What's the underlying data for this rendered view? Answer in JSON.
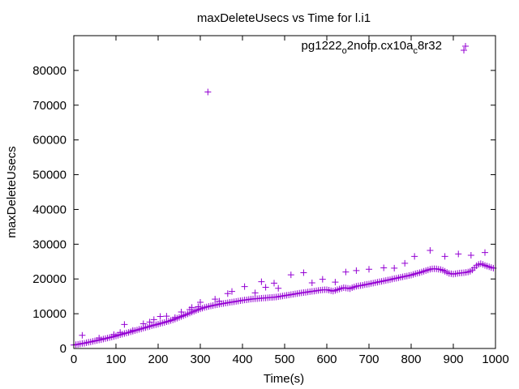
{
  "chart_data": {
    "type": "scatter",
    "title": "maxDeleteUsecs vs Time for l.i1",
    "xlabel": "Time(s)",
    "ylabel": "maxDeleteUsecs",
    "xlim": [
      0,
      1000
    ],
    "ylim": [
      0,
      90000
    ],
    "xticks": [
      0,
      100,
      200,
      300,
      400,
      500,
      600,
      700,
      800,
      900,
      1000
    ],
    "yticks": [
      0,
      10000,
      20000,
      30000,
      40000,
      50000,
      60000,
      70000,
      80000
    ],
    "grid": false,
    "legend_position": "top-right",
    "marker": "+",
    "series": [
      {
        "name": "pg1222_o2nofp.cx10a_c8r32",
        "legend_text": {
          "base": "pg1222",
          "sub1": "o",
          "mid": "2nofp.cx10a",
          "sub2": "c",
          "end": "8r32"
        },
        "color": "#9400d3",
        "points": [
          [
            0,
            1000
          ],
          [
            5,
            1100
          ],
          [
            10,
            1200
          ],
          [
            15,
            1300
          ],
          [
            20,
            1450
          ],
          [
            25,
            1500
          ],
          [
            30,
            1650
          ],
          [
            35,
            1800
          ],
          [
            40,
            1900
          ],
          [
            45,
            2050
          ],
          [
            50,
            2200
          ],
          [
            55,
            2300
          ],
          [
            60,
            2450
          ],
          [
            65,
            2550
          ],
          [
            70,
            2700
          ],
          [
            75,
            2850
          ],
          [
            80,
            3000
          ],
          [
            85,
            3150
          ],
          [
            90,
            3300
          ],
          [
            95,
            3450
          ],
          [
            100,
            3600
          ],
          [
            105,
            3800
          ],
          [
            110,
            3950
          ],
          [
            115,
            4100
          ],
          [
            120,
            4300
          ],
          [
            125,
            4450
          ],
          [
            130,
            4600
          ],
          [
            135,
            4800
          ],
          [
            140,
            4950
          ],
          [
            145,
            5150
          ],
          [
            150,
            5300
          ],
          [
            155,
            5500
          ],
          [
            160,
            5650
          ],
          [
            165,
            5850
          ],
          [
            170,
            6000
          ],
          [
            175,
            6200
          ],
          [
            180,
            6350
          ],
          [
            185,
            6550
          ],
          [
            190,
            6700
          ],
          [
            195,
            6850
          ],
          [
            200,
            7000
          ],
          [
            205,
            7200
          ],
          [
            210,
            7350
          ],
          [
            215,
            7500
          ],
          [
            220,
            7700
          ],
          [
            225,
            7850
          ],
          [
            230,
            8050
          ],
          [
            235,
            8250
          ],
          [
            240,
            8450
          ],
          [
            245,
            8700
          ],
          [
            250,
            8950
          ],
          [
            255,
            9200
          ],
          [
            260,
            9450
          ],
          [
            265,
            9700
          ],
          [
            270,
            9950
          ],
          [
            275,
            10200
          ],
          [
            280,
            10450
          ],
          [
            285,
            10700
          ],
          [
            290,
            10950
          ],
          [
            295,
            11150
          ],
          [
            300,
            11400
          ],
          [
            305,
            11600
          ],
          [
            310,
            11800
          ],
          [
            315,
            11950
          ],
          [
            320,
            12100
          ],
          [
            325,
            12250
          ],
          [
            330,
            12350
          ],
          [
            335,
            12500
          ],
          [
            340,
            12600
          ],
          [
            345,
            12750
          ],
          [
            350,
            12850
          ],
          [
            355,
            12950
          ],
          [
            360,
            13050
          ],
          [
            365,
            13150
          ],
          [
            370,
            13250
          ],
          [
            375,
            13350
          ],
          [
            380,
            13450
          ],
          [
            385,
            13550
          ],
          [
            390,
            13650
          ],
          [
            395,
            13750
          ],
          [
            400,
            13850
          ],
          [
            405,
            13950
          ],
          [
            410,
            14000
          ],
          [
            415,
            14100
          ],
          [
            420,
            14200
          ],
          [
            425,
            14250
          ],
          [
            430,
            14300
          ],
          [
            435,
            14350
          ],
          [
            440,
            14400
          ],
          [
            445,
            14450
          ],
          [
            450,
            14500
          ],
          [
            455,
            14550
          ],
          [
            460,
            14600
          ],
          [
            465,
            14650
          ],
          [
            470,
            14700
          ],
          [
            475,
            14750
          ],
          [
            480,
            14800
          ],
          [
            485,
            14900
          ],
          [
            490,
            15000
          ],
          [
            495,
            15100
          ],
          [
            500,
            15200
          ],
          [
            505,
            15300
          ],
          [
            510,
            15400
          ],
          [
            515,
            15500
          ],
          [
            520,
            15600
          ],
          [
            525,
            15700
          ],
          [
            530,
            15800
          ],
          [
            535,
            15900
          ],
          [
            540,
            16000
          ],
          [
            545,
            16100
          ],
          [
            550,
            16150
          ],
          [
            555,
            16250
          ],
          [
            560,
            16350
          ],
          [
            565,
            16450
          ],
          [
            570,
            16500
          ],
          [
            575,
            16600
          ],
          [
            580,
            16700
          ],
          [
            585,
            16800
          ],
          [
            590,
            16850
          ],
          [
            595,
            16900
          ],
          [
            600,
            16900
          ],
          [
            605,
            16800
          ],
          [
            610,
            16600
          ],
          [
            615,
            16500
          ],
          [
            620,
            16700
          ],
          [
            625,
            16900
          ],
          [
            630,
            17100
          ],
          [
            635,
            17300
          ],
          [
            640,
            17500
          ],
          [
            645,
            17400
          ],
          [
            650,
            17300
          ],
          [
            655,
            17200
          ],
          [
            660,
            17500
          ],
          [
            665,
            17700
          ],
          [
            670,
            17900
          ],
          [
            675,
            18000
          ],
          [
            680,
            18100
          ],
          [
            685,
            18200
          ],
          [
            690,
            18350
          ],
          [
            695,
            18450
          ],
          [
            700,
            18550
          ],
          [
            705,
            18700
          ],
          [
            710,
            18800
          ],
          [
            715,
            18950
          ],
          [
            720,
            19050
          ],
          [
            725,
            19200
          ],
          [
            730,
            19300
          ],
          [
            735,
            19450
          ],
          [
            740,
            19550
          ],
          [
            745,
            19700
          ],
          [
            750,
            19800
          ],
          [
            755,
            19950
          ],
          [
            760,
            20100
          ],
          [
            765,
            20200
          ],
          [
            770,
            20350
          ],
          [
            775,
            20500
          ],
          [
            780,
            20600
          ],
          [
            785,
            20750
          ],
          [
            790,
            20850
          ],
          [
            795,
            21000
          ],
          [
            800,
            21100
          ],
          [
            805,
            21300
          ],
          [
            810,
            21500
          ],
          [
            815,
            21650
          ],
          [
            820,
            21800
          ],
          [
            825,
            22000
          ],
          [
            830,
            22200
          ],
          [
            835,
            22400
          ],
          [
            840,
            22600
          ],
          [
            845,
            22800
          ],
          [
            850,
            22900
          ],
          [
            855,
            22950
          ],
          [
            860,
            22900
          ],
          [
            865,
            22800
          ],
          [
            870,
            22700
          ],
          [
            875,
            22500
          ],
          [
            880,
            22200
          ],
          [
            885,
            21900
          ],
          [
            890,
            21600
          ],
          [
            895,
            21500
          ],
          [
            900,
            21400
          ],
          [
            905,
            21500
          ],
          [
            910,
            21600
          ],
          [
            915,
            21700
          ],
          [
            920,
            21750
          ],
          [
            925,
            21800
          ],
          [
            930,
            21900
          ],
          [
            935,
            22000
          ],
          [
            940,
            22200
          ],
          [
            945,
            22600
          ],
          [
            950,
            23200
          ],
          [
            955,
            23800
          ],
          [
            960,
            24200
          ],
          [
            965,
            24400
          ],
          [
            970,
            24200
          ],
          [
            975,
            23900
          ],
          [
            980,
            23700
          ],
          [
            985,
            23500
          ],
          [
            990,
            23300
          ],
          [
            995,
            23100
          ],
          [
            20,
            3800
          ],
          [
            60,
            3000
          ],
          [
            95,
            4000
          ],
          [
            110,
            4600
          ],
          [
            120,
            6900
          ],
          [
            140,
            5200
          ],
          [
            165,
            7100
          ],
          [
            180,
            7600
          ],
          [
            190,
            8300
          ],
          [
            205,
            9200
          ],
          [
            220,
            9300
          ],
          [
            240,
            8900
          ],
          [
            255,
            10500
          ],
          [
            275,
            11200
          ],
          [
            280,
            11800
          ],
          [
            295,
            12000
          ],
          [
            300,
            13300
          ],
          [
            318,
            73800
          ],
          [
            335,
            14200
          ],
          [
            345,
            13600
          ],
          [
            365,
            15800
          ],
          [
            375,
            16400
          ],
          [
            405,
            17800
          ],
          [
            430,
            16000
          ],
          [
            445,
            19200
          ],
          [
            455,
            17600
          ],
          [
            475,
            18800
          ],
          [
            485,
            17300
          ],
          [
            515,
            21200
          ],
          [
            545,
            21800
          ],
          [
            565,
            18900
          ],
          [
            590,
            19900
          ],
          [
            620,
            19100
          ],
          [
            645,
            22000
          ],
          [
            670,
            22400
          ],
          [
            700,
            22800
          ],
          [
            735,
            23200
          ],
          [
            760,
            23100
          ],
          [
            785,
            24500
          ],
          [
            808,
            26500
          ],
          [
            845,
            28200
          ],
          [
            880,
            26500
          ],
          [
            912,
            27200
          ],
          [
            942,
            26800
          ],
          [
            975,
            27600
          ],
          [
            925,
            85800
          ]
        ]
      }
    ]
  }
}
